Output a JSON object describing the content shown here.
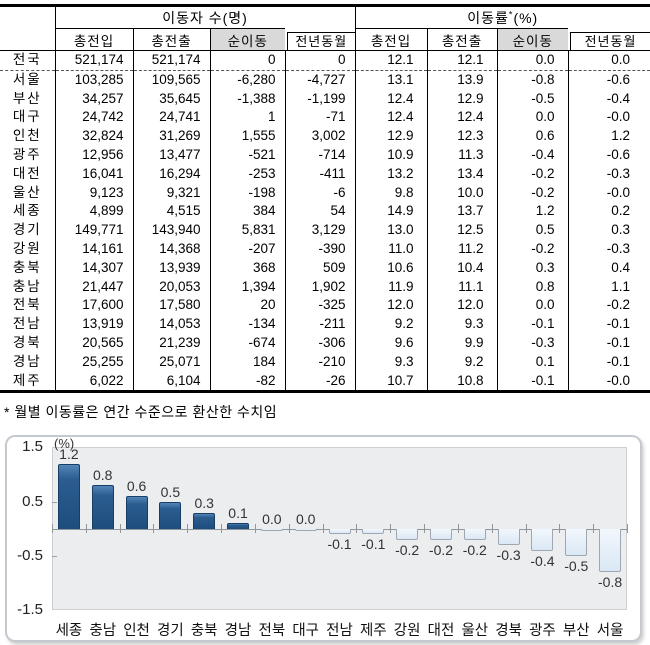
{
  "table": {
    "group_headers": {
      "movers": "이동자 수(명)",
      "rate_prefix": "이동률",
      "rate_sup": "*",
      "rate_suffix": "(%)"
    },
    "sub_headers": [
      "총전입",
      "총전출",
      "순이동",
      "전년동월"
    ],
    "rows": [
      {
        "region": "전국",
        "values": [
          "521,174",
          "521,174",
          "0",
          "0",
          "12.1",
          "12.1",
          "0.0",
          "0.0"
        ]
      },
      {
        "region": "서울",
        "values": [
          "103,285",
          "109,565",
          "-6,280",
          "-4,727",
          "13.1",
          "13.9",
          "-0.8",
          "-0.6"
        ]
      },
      {
        "region": "부산",
        "values": [
          "34,257",
          "35,645",
          "-1,388",
          "-1,199",
          "12.4",
          "12.9",
          "-0.5",
          "-0.4"
        ]
      },
      {
        "region": "대구",
        "values": [
          "24,742",
          "24,741",
          "1",
          "-71",
          "12.4",
          "12.4",
          "0.0",
          "-0.0"
        ]
      },
      {
        "region": "인천",
        "values": [
          "32,824",
          "31,269",
          "1,555",
          "3,002",
          "12.9",
          "12.3",
          "0.6",
          "1.2"
        ]
      },
      {
        "region": "광주",
        "values": [
          "12,956",
          "13,477",
          "-521",
          "-714",
          "10.9",
          "11.3",
          "-0.4",
          "-0.6"
        ]
      },
      {
        "region": "대전",
        "values": [
          "16,041",
          "16,294",
          "-253",
          "-411",
          "13.2",
          "13.4",
          "-0.2",
          "-0.3"
        ]
      },
      {
        "region": "울산",
        "values": [
          "9,123",
          "9,321",
          "-198",
          "-6",
          "9.8",
          "10.0",
          "-0.2",
          "-0.0"
        ]
      },
      {
        "region": "세종",
        "values": [
          "4,899",
          "4,515",
          "384",
          "54",
          "14.9",
          "13.7",
          "1.2",
          "0.2"
        ]
      },
      {
        "region": "경기",
        "values": [
          "149,771",
          "143,940",
          "5,831",
          "3,129",
          "13.0",
          "12.5",
          "0.5",
          "0.3"
        ]
      },
      {
        "region": "강원",
        "values": [
          "14,161",
          "14,368",
          "-207",
          "-390",
          "11.0",
          "11.2",
          "-0.2",
          "-0.3"
        ]
      },
      {
        "region": "충북",
        "values": [
          "14,307",
          "13,939",
          "368",
          "509",
          "10.6",
          "10.4",
          "0.3",
          "0.4"
        ]
      },
      {
        "region": "충남",
        "values": [
          "21,447",
          "20,053",
          "1,394",
          "1,902",
          "11.9",
          "11.1",
          "0.8",
          "1.1"
        ]
      },
      {
        "region": "전북",
        "values": [
          "17,600",
          "17,580",
          "20",
          "-325",
          "12.0",
          "12.0",
          "0.0",
          "-0.2"
        ]
      },
      {
        "region": "전남",
        "values": [
          "13,919",
          "14,053",
          "-134",
          "-211",
          "9.2",
          "9.3",
          "-0.1",
          "-0.1"
        ]
      },
      {
        "region": "경북",
        "values": [
          "20,565",
          "21,239",
          "-674",
          "-306",
          "9.6",
          "9.9",
          "-0.3",
          "-0.1"
        ]
      },
      {
        "region": "경남",
        "values": [
          "25,255",
          "25,071",
          "184",
          "-210",
          "9.3",
          "9.2",
          "0.1",
          "-0.1"
        ]
      },
      {
        "region": "제주",
        "values": [
          "6,022",
          "6,104",
          "-82",
          "-26",
          "10.7",
          "10.8",
          "-0.1",
          "-0.0"
        ]
      }
    ]
  },
  "footnote": "* 월별 이동률은 연간 수준으로 환산한 수치임",
  "chart_data": {
    "type": "bar",
    "title": "",
    "unit_label": "(%)",
    "categories": [
      "세종",
      "충남",
      "인천",
      "경기",
      "충북",
      "경남",
      "전북",
      "대구",
      "전남",
      "제주",
      "강원",
      "대전",
      "울산",
      "경북",
      "광주",
      "부산",
      "서울"
    ],
    "values": [
      1.2,
      0.8,
      0.6,
      0.5,
      0.3,
      0.1,
      0.0,
      0.0,
      -0.1,
      -0.1,
      -0.2,
      -0.2,
      -0.2,
      -0.3,
      -0.4,
      -0.5,
      -0.8
    ],
    "xlabel": "",
    "ylabel": "(%)",
    "ylim": [
      -1.5,
      1.5
    ],
    "yticks": [
      1.5,
      0.5,
      -0.5,
      -1.5
    ],
    "grid": false,
    "legend": "none"
  },
  "colors": {
    "positive_bar": "#1F4E7E",
    "negative_bar": "#DCE9F5",
    "header_shade": "#D9D9D9",
    "plot_background": "#ECEDEF",
    "axis": "#8F969C"
  }
}
